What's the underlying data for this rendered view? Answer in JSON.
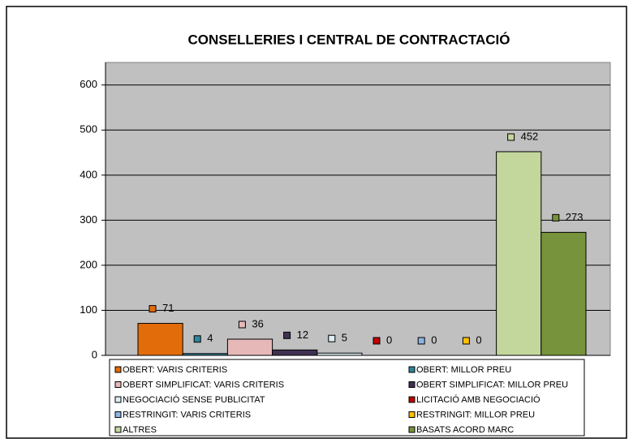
{
  "chart_data": {
    "type": "bar",
    "title": "CONSELLERIES I CENTRAL DE CONTRACTACIÓ",
    "categories": [
      "OBERT: VARIS CRITERIS",
      "OBERT: MILLOR PREU",
      "OBERT SIMPLIFICAT: VARIS CRITERIS",
      "OBERT SIMPLIFICAT: MILLOR PREU",
      "NEGOCIACIÓ SENSE PUBLICITAT",
      "LICITACIÓ AMB NEGOCIACIÓ",
      "RESTRINGIT: VARIS CRITERIS",
      "RESTRINGIT: MILLOR PREU",
      "ALTRES",
      "BASATS ACORD MARC"
    ],
    "values": [
      71,
      4,
      36,
      12,
      5,
      0,
      0,
      0,
      452,
      273
    ],
    "colors": [
      "#e36c0a",
      "#31859c",
      "#e6b9b8",
      "#403152",
      "#dbeef4",
      "#c00000",
      "#8db3e2",
      "#ffc000",
      "#c3d69b",
      "#77933c"
    ],
    "ylim": [
      0,
      650
    ],
    "yticks": [
      0,
      100,
      200,
      300,
      400,
      500,
      600
    ],
    "legend": "bottom"
  }
}
